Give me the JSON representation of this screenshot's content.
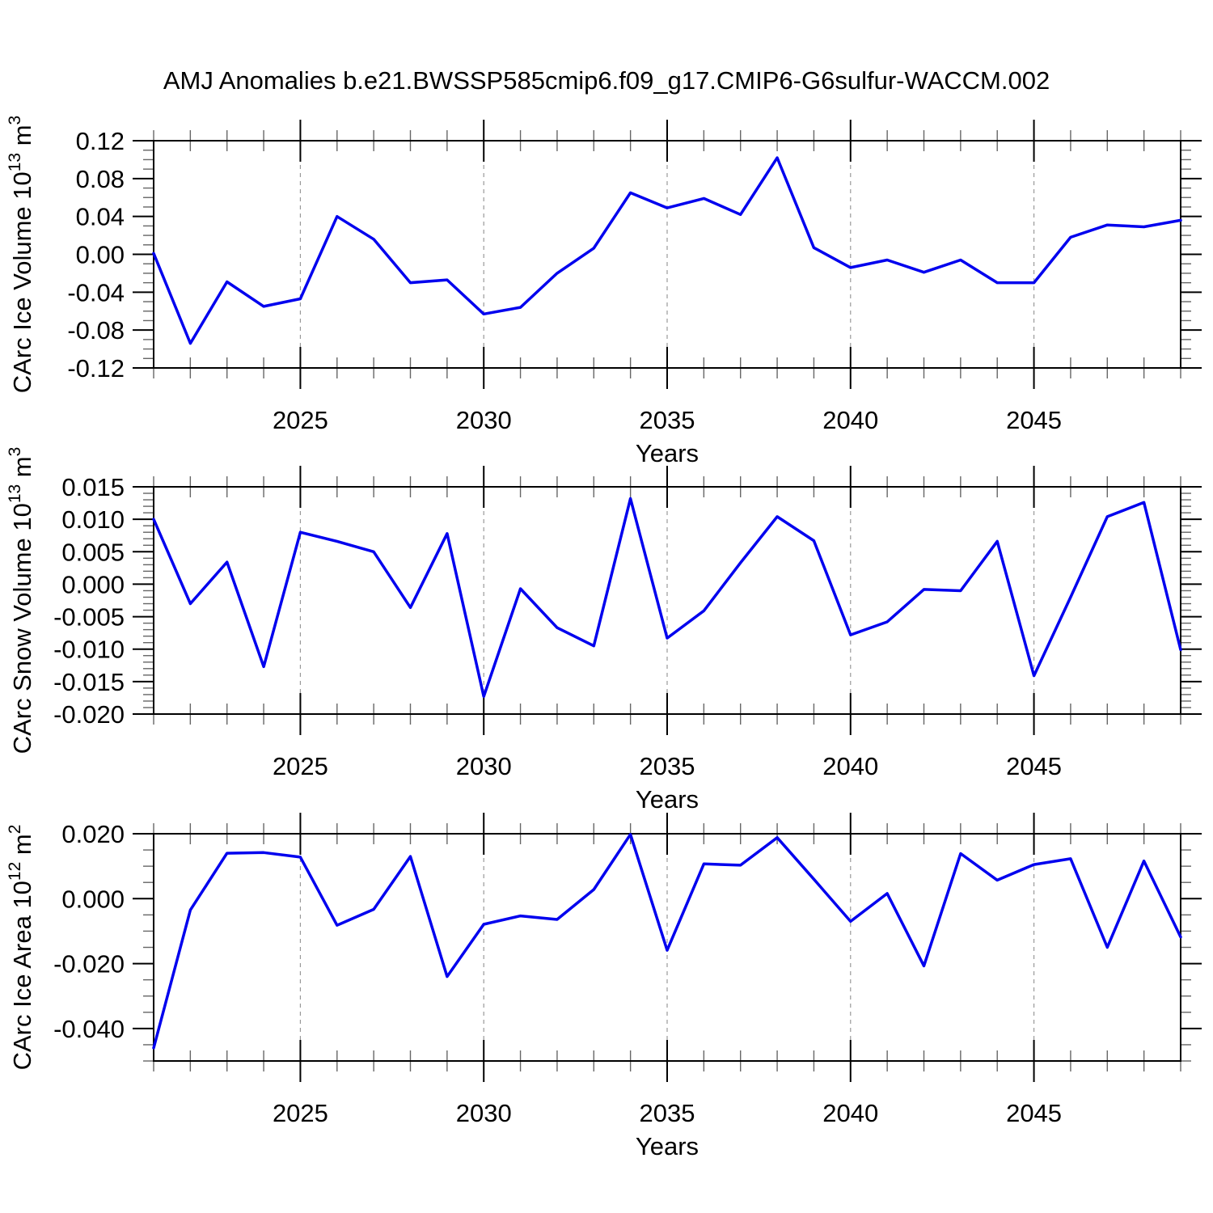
{
  "title": "AMJ Anomalies b.e21.BWSSP585cmip6.f09_g17.CMIP6-G6sulfur-WACCM.002",
  "style": {
    "line_color": "#0000ee",
    "grid_color": "#999999",
    "axis_color": "#000000",
    "minor_tick_color": "#666666"
  },
  "chart_data": [
    {
      "type": "line",
      "ylabel": {
        "pre": "CArc Ice Volume 10",
        "sup": "13",
        "mid": " m",
        "sup2": "3"
      },
      "xlabel": "Years",
      "x": [
        2021,
        2022,
        2023,
        2024,
        2025,
        2026,
        2027,
        2028,
        2029,
        2030,
        2031,
        2032,
        2033,
        2034,
        2035,
        2036,
        2037,
        2038,
        2039,
        2040,
        2041,
        2042,
        2043,
        2044,
        2045,
        2046,
        2047,
        2048,
        2049
      ],
      "values": [
        0.001,
        -0.094,
        -0.029,
        -0.055,
        -0.047,
        0.04,
        0.016,
        -0.03,
        -0.027,
        -0.063,
        -0.056,
        -0.02,
        0.0065,
        0.065,
        0.049,
        0.059,
        0.042,
        0.102,
        0.007,
        -0.014,
        -0.006,
        -0.019,
        -0.006,
        -0.03,
        -0.03,
        0.018,
        0.031,
        0.029,
        0.036
      ],
      "xlim": [
        2021,
        2049
      ],
      "ylim": [
        -0.12,
        0.12
      ],
      "yticks": [
        0.12,
        0.08,
        0.04,
        0.0,
        -0.04,
        -0.08,
        -0.12
      ],
      "ytick_labels": [
        "0.12",
        "0.08",
        "0.04",
        "0.00",
        "-0.04",
        "-0.08",
        "-0.12"
      ],
      "y_minor_step": 0.01,
      "xticks": [
        2025,
        2030,
        2035,
        2040,
        2045
      ],
      "xtick_labels": [
        "2025",
        "2030",
        "2035",
        "2040",
        "2045"
      ],
      "x_minor_step": 1,
      "grid_x": [
        2025,
        2030,
        2035,
        2040,
        2045
      ],
      "grid": true,
      "legend": "none"
    },
    {
      "type": "line",
      "ylabel": {
        "pre": "CArc Snow Volume 10",
        "sup": "13",
        "mid": " m",
        "sup2": "3"
      },
      "xlabel": "Years",
      "x": [
        2021,
        2022,
        2023,
        2024,
        2025,
        2026,
        2027,
        2028,
        2029,
        2030,
        2031,
        2032,
        2033,
        2034,
        2035,
        2036,
        2037,
        2038,
        2039,
        2040,
        2041,
        2042,
        2043,
        2044,
        2045,
        2046,
        2047,
        2048,
        2049
      ],
      "values": [
        0.01,
        -0.003,
        0.0034,
        -0.0127,
        0.008,
        0.0066,
        0.005,
        -0.0036,
        0.0078,
        -0.0173,
        -0.0007,
        -0.0067,
        -0.0095,
        0.0132,
        -0.0083,
        -0.0041,
        0.0033,
        0.0104,
        0.0067,
        -0.0078,
        -0.0058,
        -0.0008,
        -0.001,
        0.0066,
        -0.0141,
        -0.002,
        0.0104,
        0.0126,
        -0.0101
      ],
      "xlim": [
        2021,
        2049
      ],
      "ylim": [
        -0.02,
        0.015
      ],
      "yticks": [
        0.015,
        0.01,
        0.005,
        0.0,
        -0.005,
        -0.01,
        -0.015,
        -0.02
      ],
      "ytick_labels": [
        "0.015",
        "0.010",
        "0.005",
        "0.000",
        "-0.005",
        "-0.010",
        "-0.015",
        "-0.020"
      ],
      "y_minor_step": 0.001,
      "xticks": [
        2025,
        2030,
        2035,
        2040,
        2045
      ],
      "xtick_labels": [
        "2025",
        "2030",
        "2035",
        "2040",
        "2045"
      ],
      "x_minor_step": 1,
      "grid_x": [
        2025,
        2030,
        2035,
        2040,
        2045
      ],
      "grid": true,
      "legend": "none"
    },
    {
      "type": "line",
      "ylabel": {
        "pre": "CArc Ice Area 10",
        "sup": "12",
        "mid": " m",
        "sup2": "2"
      },
      "xlabel": "Years",
      "x": [
        2021,
        2022,
        2023,
        2024,
        2025,
        2026,
        2027,
        2028,
        2029,
        2030,
        2031,
        2032,
        2033,
        2034,
        2035,
        2036,
        2037,
        2038,
        2039,
        2040,
        2041,
        2042,
        2043,
        2044,
        2045,
        2046,
        2047,
        2048,
        2049
      ],
      "values": [
        -0.046,
        -0.0035,
        0.014,
        0.0142,
        0.0128,
        -0.0082,
        -0.0033,
        0.013,
        -0.024,
        -0.0079,
        -0.0053,
        -0.0064,
        0.0028,
        0.0198,
        -0.0159,
        0.0107,
        0.0103,
        0.0188,
        0.006,
        -0.007,
        0.0016,
        -0.0207,
        0.0139,
        0.0057,
        0.0105,
        0.0123,
        -0.015,
        0.0116,
        -0.0118
      ],
      "xlim": [
        2021,
        2049
      ],
      "ylim": [
        -0.05,
        0.02
      ],
      "yticks": [
        0.02,
        0.0,
        -0.02,
        -0.04
      ],
      "ytick_labels": [
        "0.020",
        "0.000",
        "-0.020",
        "-0.040"
      ],
      "y_minor_step": 0.005,
      "xticks": [
        2025,
        2030,
        2035,
        2040,
        2045
      ],
      "xtick_labels": [
        "2025",
        "2030",
        "2035",
        "2040",
        "2045"
      ],
      "x_minor_step": 1,
      "grid_x": [
        2025,
        2030,
        2035,
        2040,
        2045
      ],
      "grid": true,
      "legend": "none"
    }
  ]
}
